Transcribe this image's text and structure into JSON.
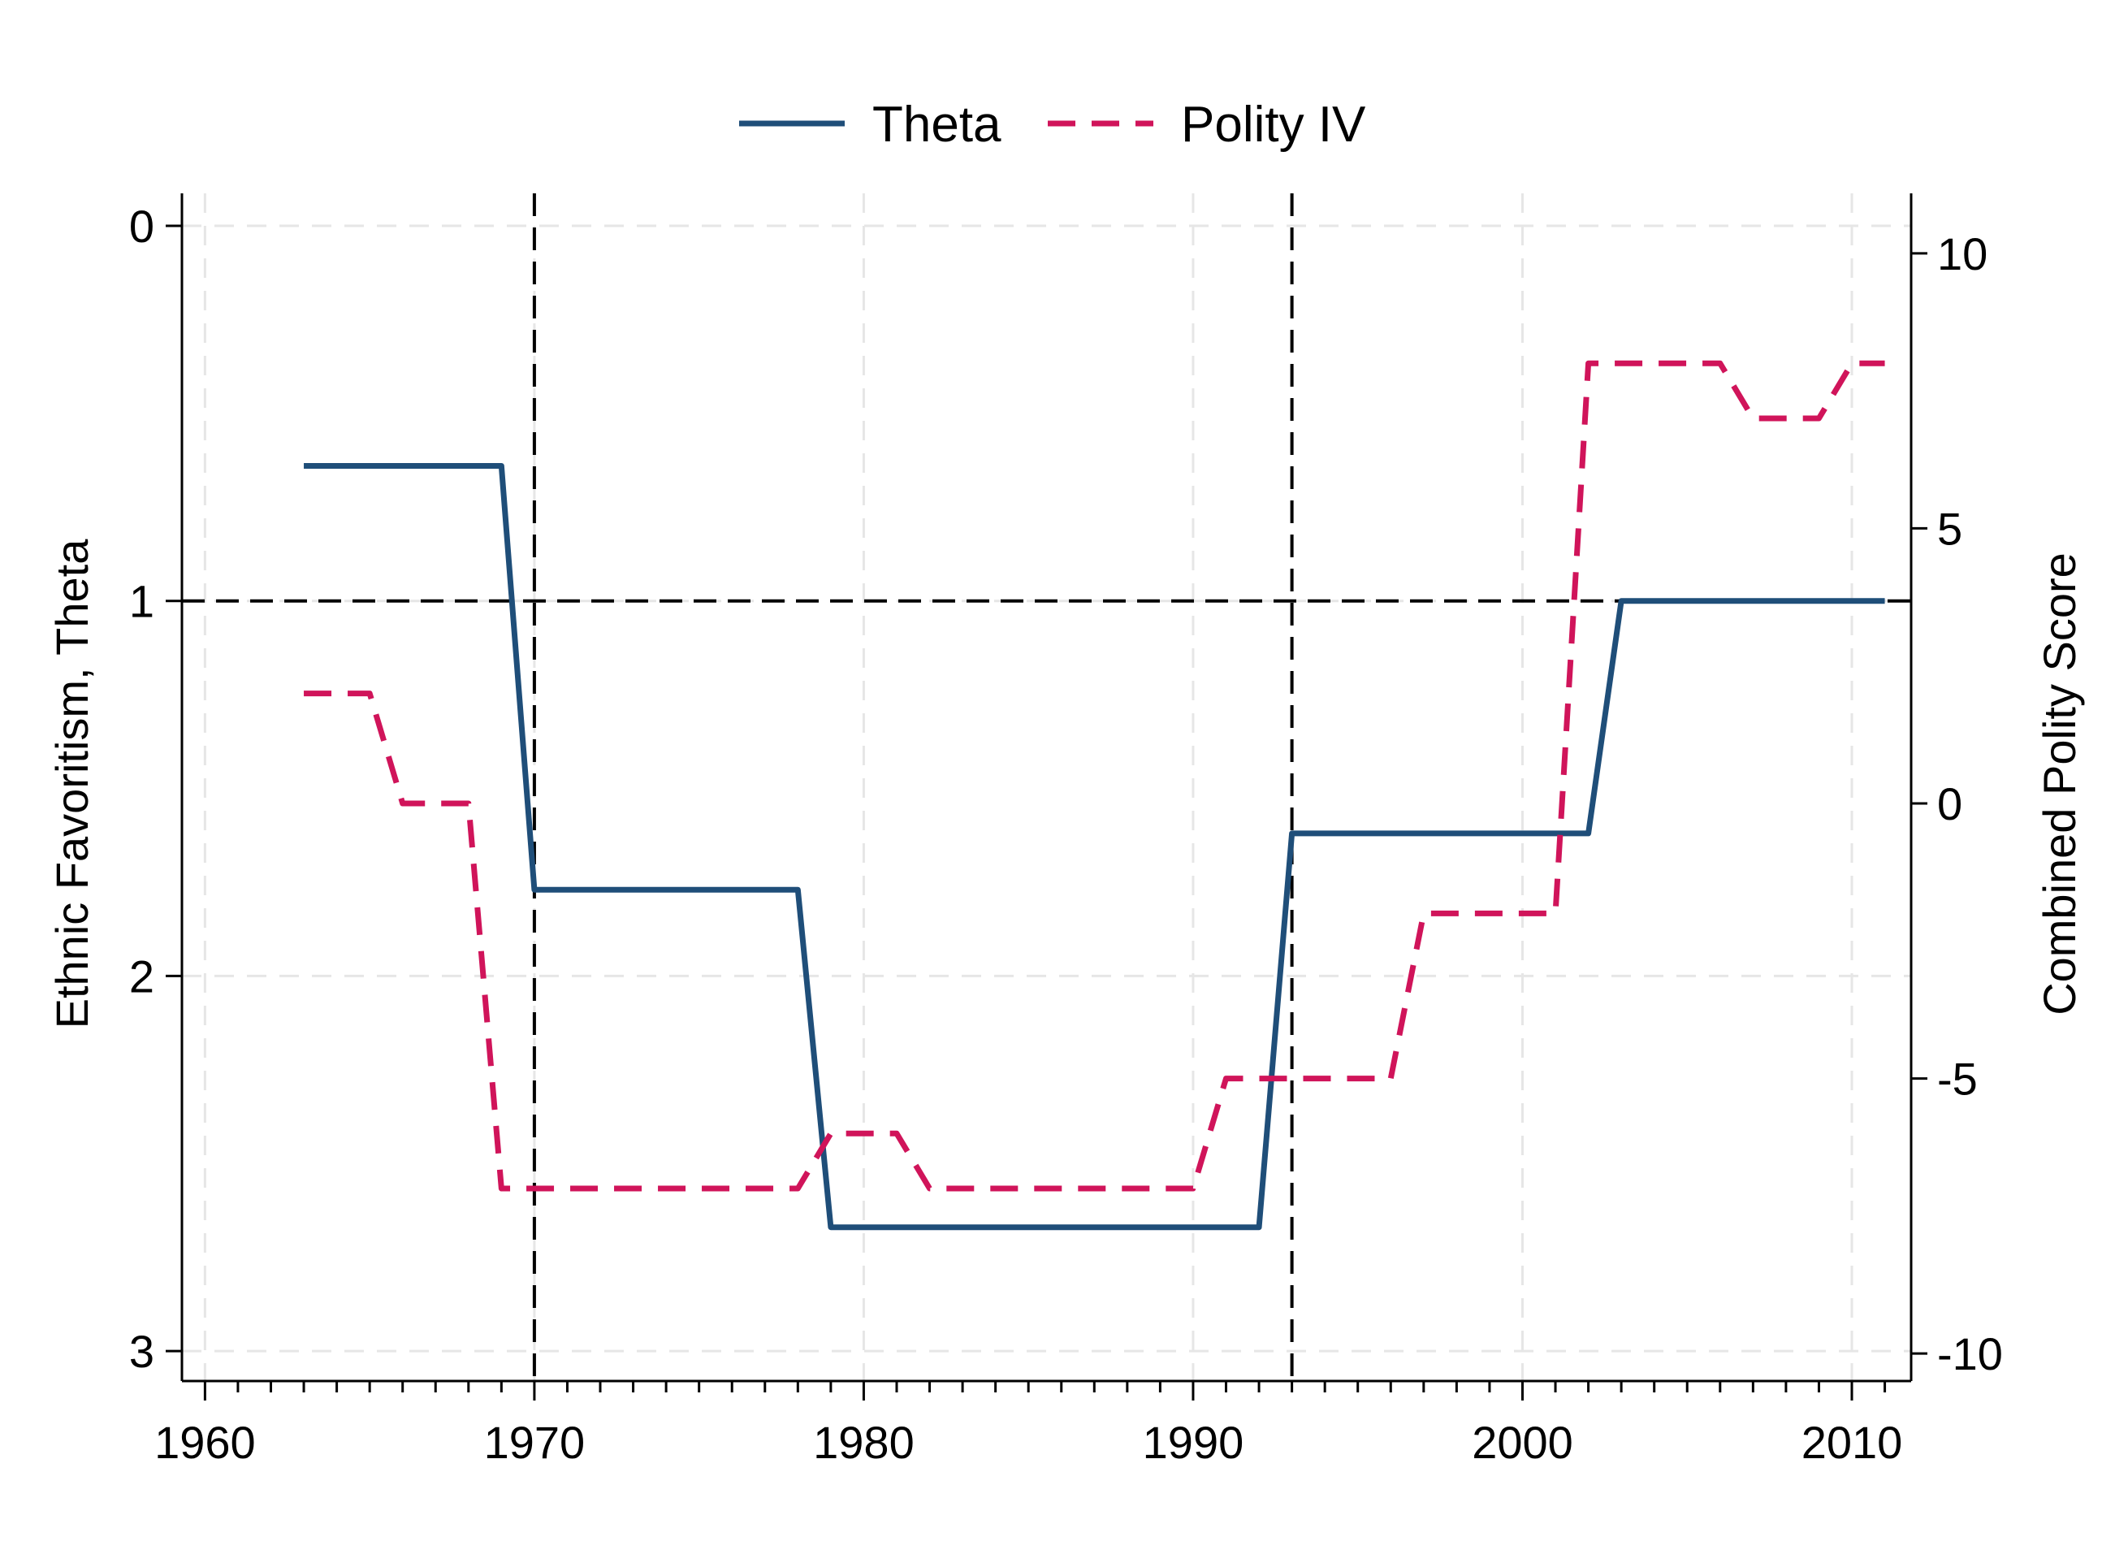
{
  "chart_data": {
    "type": "line",
    "legend": {
      "position": "top",
      "entries": [
        {
          "label": "Theta",
          "style": "solid",
          "color": "#1f4e79"
        },
        {
          "label": "Polity IV",
          "style": "dashed",
          "color": "#d0145a"
        }
      ]
    },
    "xlim": [
      1959.3,
      2011.8
    ],
    "xticks": [
      1960,
      1970,
      1980,
      1990,
      2000,
      2010
    ],
    "y_left": {
      "label": "Ethnic Favoritism, Theta",
      "lim": [
        0,
        3.08
      ],
      "reversed": true,
      "ticks": [
        0,
        1,
        2,
        3
      ]
    },
    "y_right": {
      "label": "Combined Polity Score",
      "lim": [
        -10.5,
        10.5
      ],
      "ticks": [
        10,
        5,
        0,
        -5,
        -10
      ]
    },
    "grid": true,
    "reference_lines": {
      "horizontal_theta": 1,
      "vertical_years": [
        1970,
        1993
      ]
    },
    "series": [
      {
        "name": "Theta",
        "axis": "left",
        "color": "#1f4e79",
        "dash": "solid",
        "x": [
          1963,
          1969,
          1970,
          1978,
          1979,
          1992,
          1993,
          2002,
          2003,
          2011
        ],
        "y": [
          0.64,
          0.64,
          1.77,
          1.77,
          2.67,
          2.67,
          1.62,
          1.62,
          1.0,
          1.0
        ]
      },
      {
        "name": "Polity IV",
        "axis": "right",
        "color": "#d0145a",
        "dash": "dashed",
        "x": [
          1963,
          1965,
          1966,
          1968,
          1969,
          1978,
          1979,
          1981,
          1982,
          1990,
          1991,
          1996,
          1997,
          2001,
          2002,
          2006,
          2007,
          2009,
          2010,
          2011
        ],
        "y": [
          2,
          2,
          0,
          0,
          -7,
          -7,
          -6,
          -6,
          -7,
          -7,
          -5,
          -5,
          -2,
          -2,
          8,
          8,
          7,
          7,
          8,
          8
        ]
      }
    ]
  }
}
